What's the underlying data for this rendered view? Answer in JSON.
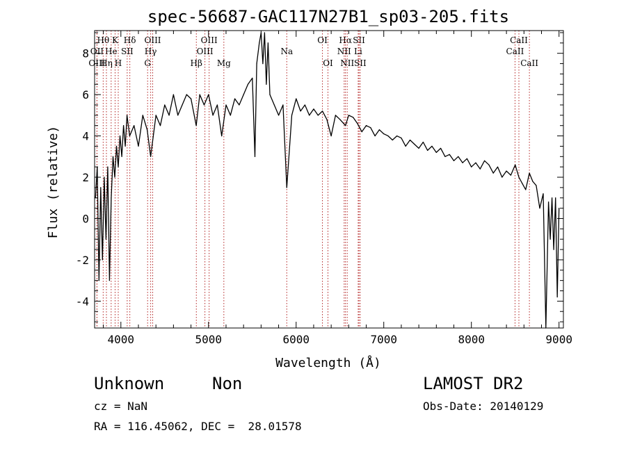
{
  "chart_data": {
    "type": "line",
    "title": "spec-56687-GAC117N27B1_sp03-205.fits",
    "xlabel": "Wavelength (Å)",
    "ylabel": "Flux (relative)",
    "xlim": [
      3700,
      9050
    ],
    "ylim": [
      -5.3,
      9.1
    ],
    "xticks": [
      4000,
      5000,
      6000,
      7000,
      8000,
      9000
    ],
    "yticks": [
      -4,
      -2,
      0,
      2,
      4,
      6,
      8
    ],
    "grid": false,
    "series": [
      {
        "x": [
          3710,
          3730,
          3750,
          3770,
          3790,
          3810,
          3830,
          3850,
          3870,
          3890,
          3910,
          3930,
          3950,
          3970,
          3990,
          4010,
          4030,
          4050,
          4070,
          4100,
          4150,
          4200,
          4250,
          4300,
          4340,
          4400,
          4450,
          4500,
          4550,
          4600,
          4650,
          4700,
          4750,
          4800,
          4860,
          4900,
          4950,
          5000,
          5050,
          5100,
          5150,
          5200,
          5250,
          5300,
          5350,
          5400,
          5450,
          5500,
          5530,
          5550,
          5580,
          5600,
          5620,
          5640,
          5660,
          5680,
          5700,
          5750,
          5800,
          5850,
          5893,
          5950,
          6000,
          6050,
          6100,
          6150,
          6200,
          6250,
          6300,
          6350,
          6400,
          6450,
          6500,
          6563,
          6600,
          6650,
          6700,
          6750,
          6800,
          6850,
          6900,
          6950,
          7000,
          7050,
          7100,
          7150,
          7200,
          7250,
          7300,
          7350,
          7400,
          7450,
          7500,
          7550,
          7600,
          7650,
          7700,
          7750,
          7800,
          7850,
          7900,
          7950,
          8000,
          8050,
          8100,
          8150,
          8200,
          8250,
          8300,
          8350,
          8400,
          8450,
          8500,
          8542,
          8580,
          8620,
          8662,
          8700,
          8740,
          8780,
          8820,
          8850,
          8880,
          8900,
          8920,
          8940,
          8960,
          8980,
          9000
        ],
        "values": [
          1.0,
          2.5,
          -3.0,
          1.5,
          -2.0,
          2.0,
          -1.0,
          2.5,
          -3.0,
          1.0,
          3.0,
          2.0,
          3.5,
          2.5,
          4.0,
          3.0,
          4.5,
          3.5,
          5.0,
          4.0,
          4.5,
          3.5,
          5.0,
          4.3,
          3.0,
          5.0,
          4.5,
          5.5,
          5.0,
          6.0,
          5.0,
          5.5,
          6.0,
          5.8,
          4.5,
          6.0,
          5.5,
          6.0,
          5.0,
          5.5,
          4.0,
          5.5,
          5.0,
          5.8,
          5.5,
          6.0,
          6.5,
          6.8,
          3.0,
          7.5,
          8.5,
          9.0,
          7.5,
          9.0,
          6.5,
          8.5,
          6.0,
          5.5,
          5.0,
          5.5,
          1.5,
          5.0,
          5.8,
          5.2,
          5.5,
          5.0,
          5.3,
          5.0,
          5.2,
          4.8,
          4.0,
          5.0,
          4.8,
          4.5,
          5.0,
          4.9,
          4.6,
          4.2,
          4.5,
          4.4,
          4.0,
          4.3,
          4.1,
          4.0,
          3.8,
          4.0,
          3.9,
          3.5,
          3.8,
          3.6,
          3.4,
          3.7,
          3.3,
          3.5,
          3.2,
          3.4,
          3.0,
          3.1,
          2.8,
          3.0,
          2.7,
          2.9,
          2.5,
          2.7,
          2.4,
          2.8,
          2.6,
          2.2,
          2.5,
          2.0,
          2.3,
          2.1,
          2.6,
          2.0,
          1.7,
          1.4,
          2.2,
          1.8,
          1.6,
          0.5,
          1.2,
          -5.5,
          0.8,
          -1.0,
          1.0,
          -1.5,
          1.0,
          -3.8,
          0.5
        ]
      }
    ],
    "lines": [
      {
        "label": "Hθ",
        "wave": 3798,
        "row": 0
      },
      {
        "label": "OII",
        "wave": 3727,
        "row": 1
      },
      {
        "label": "OIII",
        "wave": 3727,
        "row": 2
      },
      {
        "label": "He",
        "wave": 3889,
        "row": 1
      },
      {
        "label": "Hη",
        "wave": 3835,
        "row": 2
      },
      {
        "label": "K",
        "wave": 3934,
        "row": 0
      },
      {
        "label": "H",
        "wave": 3970,
        "row": 2
      },
      {
        "label": "SII",
        "wave": 4072,
        "row": 1
      },
      {
        "label": "Hδ",
        "wave": 4102,
        "row": 0
      },
      {
        "label": "OIII",
        "wave": 4363,
        "row": 0
      },
      {
        "label": "Hγ",
        "wave": 4340,
        "row": 1
      },
      {
        "label": "G",
        "wave": 4305,
        "row": 2
      },
      {
        "label": "Hβ",
        "wave": 4861,
        "row": 2
      },
      {
        "label": "OIII",
        "wave": 5007,
        "row": 0
      },
      {
        "label": "OIII",
        "wave": 4959,
        "row": 1
      },
      {
        "label": "Mg",
        "wave": 5175,
        "row": 2
      },
      {
        "label": "Na",
        "wave": 5893,
        "row": 1
      },
      {
        "label": "OI",
        "wave": 6300,
        "row": 0
      },
      {
        "label": "OI",
        "wave": 6363,
        "row": 2
      },
      {
        "label": "Hα",
        "wave": 6563,
        "row": 0
      },
      {
        "label": "NII",
        "wave": 6548,
        "row": 1
      },
      {
        "label": "NII",
        "wave": 6583,
        "row": 2
      },
      {
        "label": "SII",
        "wave": 6717,
        "row": 0
      },
      {
        "label": "Li",
        "wave": 6708,
        "row": 1
      },
      {
        "label": "SII",
        "wave": 6731,
        "row": 2
      },
      {
        "label": "CaII",
        "wave": 8542,
        "row": 0
      },
      {
        "label": "CaII",
        "wave": 8498,
        "row": 1
      },
      {
        "label": "CaII",
        "wave": 8662,
        "row": 2
      }
    ],
    "line_color": "#b22222"
  },
  "info": {
    "class_name": "Unknown",
    "subclass": "Non",
    "survey": "LAMOST DR2",
    "cz": "cz = NaN",
    "obs_date": "Obs-Date: 20140129",
    "coords": "RA = 116.45062, DEC =  28.01578"
  }
}
